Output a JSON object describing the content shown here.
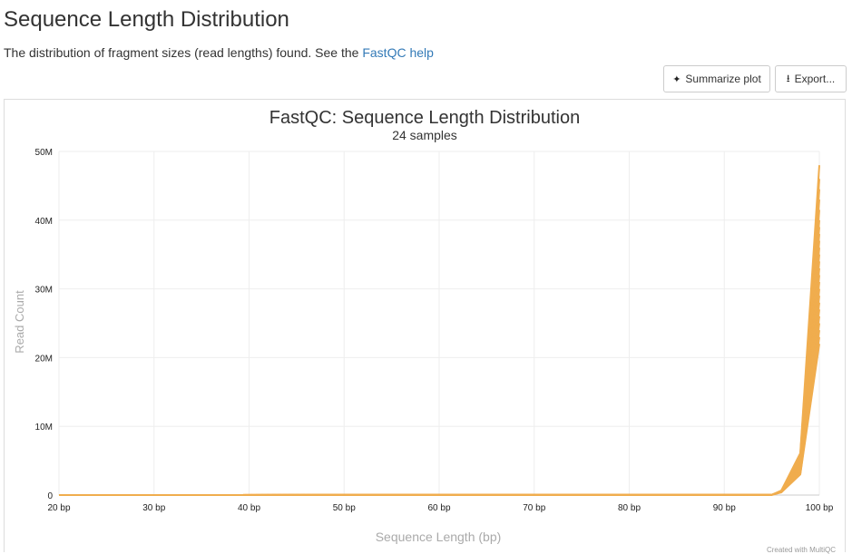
{
  "page": {
    "title": "Sequence Length Distribution",
    "description_prefix": "The distribution of fragment sizes (read lengths) found. See the ",
    "help_link": "FastQC help"
  },
  "toolbar": {
    "summarize_label": "Summarize plot",
    "export_label": "Export..."
  },
  "credit": "Created with MultiQC",
  "colors": {
    "series": "#f0ad4e",
    "link": "#337ab7"
  },
  "chart_data": {
    "type": "line",
    "title": "FastQC: Sequence Length Distribution",
    "subtitle": "24 samples",
    "xlabel": "Sequence Length (bp)",
    "ylabel": "Read Count",
    "xlim": [
      20,
      100
    ],
    "ylim": [
      0,
      50000000
    ],
    "x_ticks": [
      20,
      30,
      40,
      50,
      60,
      70,
      80,
      90,
      100
    ],
    "x_tick_labels": [
      "20 bp",
      "30 bp",
      "40 bp",
      "50 bp",
      "60 bp",
      "70 bp",
      "80 bp",
      "90 bp",
      "100 bp"
    ],
    "y_ticks": [
      0,
      10000000,
      20000000,
      30000000,
      40000000,
      50000000
    ],
    "y_tick_labels": [
      "0",
      "10M",
      "20M",
      "30M",
      "40M",
      "50M"
    ],
    "grid": true,
    "legend": "none",
    "x": [
      20,
      95,
      96,
      98,
      100
    ],
    "series": [
      {
        "values": [
          0,
          20000,
          400000,
          3000000,
          22000000
        ]
      },
      {
        "values": [
          0,
          20000,
          420000,
          3100000,
          23000000
        ]
      },
      {
        "values": [
          0,
          20000,
          430000,
          3200000,
          24000000
        ]
      },
      {
        "values": [
          0,
          20000,
          440000,
          3300000,
          25000000
        ]
      },
      {
        "values": [
          0,
          20000,
          450000,
          3400000,
          26000000
        ]
      },
      {
        "values": [
          0,
          20000,
          460000,
          3500000,
          27000000
        ]
      },
      {
        "values": [
          0,
          20000,
          470000,
          3600000,
          28000000
        ]
      },
      {
        "values": [
          0,
          20000,
          480000,
          3700000,
          29000000
        ]
      },
      {
        "values": [
          0,
          20000,
          490000,
          3800000,
          30000000
        ]
      },
      {
        "values": [
          0,
          20000,
          500000,
          4000000,
          31000000
        ]
      },
      {
        "values": [
          0,
          20000,
          510000,
          4100000,
          32000000
        ]
      },
      {
        "values": [
          0,
          20000,
          520000,
          4200000,
          33000000
        ]
      },
      {
        "values": [
          0,
          20000,
          530000,
          4300000,
          34000000
        ]
      },
      {
        "values": [
          0,
          20000,
          540000,
          4400000,
          35000000
        ]
      },
      {
        "values": [
          0,
          20000,
          550000,
          4500000,
          36000000
        ]
      },
      {
        "values": [
          0,
          20000,
          560000,
          4700000,
          37000000
        ]
      },
      {
        "values": [
          0,
          20000,
          570000,
          4800000,
          38000000
        ]
      },
      {
        "values": [
          0,
          20000,
          580000,
          4900000,
          39000000
        ]
      },
      {
        "values": [
          0,
          20000,
          590000,
          5000000,
          40000000
        ]
      },
      {
        "values": [
          0,
          20000,
          600000,
          5200000,
          41500000
        ]
      },
      {
        "values": [
          0,
          20000,
          610000,
          5400000,
          43000000
        ]
      },
      {
        "values": [
          0,
          20000,
          620000,
          5600000,
          44500000
        ]
      },
      {
        "values": [
          0,
          20000,
          630000,
          5800000,
          46000000
        ]
      },
      {
        "values": [
          0,
          20000,
          650000,
          6100000,
          48000000
        ]
      }
    ]
  }
}
